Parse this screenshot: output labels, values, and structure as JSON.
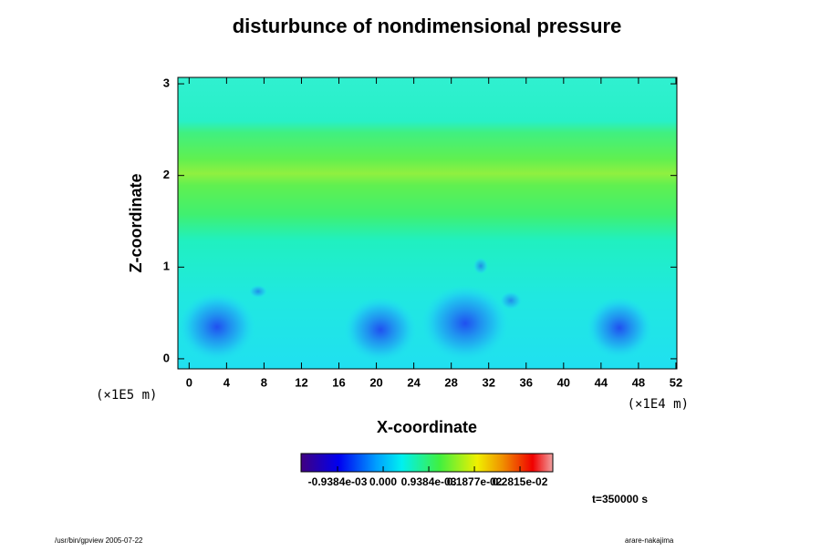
{
  "chart_data": {
    "type": "contour",
    "title": "disturbunce of nondimensional pressure",
    "x_label": "X-coordinate",
    "y_label": "Z-coordinate",
    "x_unit": "(×1E4 m)",
    "y_unit": "(×1E5 m)",
    "xlim": [
      -1.2,
      52.1
    ],
    "ylim": [
      -0.11,
      3.07
    ],
    "xticks": [
      0,
      4,
      8,
      12,
      16,
      20,
      24,
      28,
      32,
      36,
      40,
      44,
      48,
      52
    ],
    "yticks": [
      0,
      1,
      2,
      3
    ],
    "colorbar": {
      "lim": [
        -0.00169,
        0.00349
      ],
      "ticks": [
        {
          "value": -0.0009384,
          "label": "-0.9384e-03"
        },
        {
          "value": 0,
          "label": "0.000"
        },
        {
          "value": 0.0009384,
          "label": "0.9384e-03"
        },
        {
          "value": 0.001877,
          "label": "0.1877e-02"
        },
        {
          "value": 0.002815,
          "label": "0.2815e-02"
        }
      ]
    },
    "time_label": "t=350000 s",
    "footer_left": "/usr/bin/gpview 2005-07-22",
    "footer_right": "arare-nakajima"
  }
}
